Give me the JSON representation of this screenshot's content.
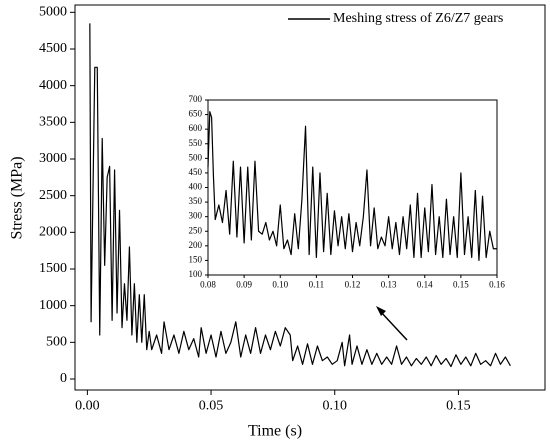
{
  "chart_data": [
    {
      "type": "line",
      "xlabel": "Time (s)",
      "ylabel": "Stress (MPa)",
      "x": [
        0.001,
        0.0015,
        0.003,
        0.004,
        0.005,
        0.006,
        0.007,
        0.008,
        0.009,
        0.01,
        0.011,
        0.012,
        0.013,
        0.014,
        0.015,
        0.016,
        0.017,
        0.018,
        0.019,
        0.02,
        0.021,
        0.022,
        0.023,
        0.024,
        0.025,
        0.026,
        0.028,
        0.03,
        0.031,
        0.033,
        0.035,
        0.037,
        0.039,
        0.041,
        0.043,
        0.045,
        0.046,
        0.048,
        0.05,
        0.052,
        0.054,
        0.056,
        0.058,
        0.06,
        0.062,
        0.064,
        0.066,
        0.068,
        0.07,
        0.072,
        0.074,
        0.076,
        0.078,
        0.08,
        0.082,
        0.083,
        0.085,
        0.087,
        0.089,
        0.091,
        0.093,
        0.095,
        0.097,
        0.099,
        0.101,
        0.103,
        0.104,
        0.106,
        0.107,
        0.109,
        0.111,
        0.113,
        0.115,
        0.117,
        0.119,
        0.121,
        0.123,
        0.125,
        0.127,
        0.129,
        0.131,
        0.133,
        0.135,
        0.137,
        0.139,
        0.141,
        0.143,
        0.145,
        0.147,
        0.149,
        0.151,
        0.153,
        0.155,
        0.157,
        0.159,
        0.161,
        0.163,
        0.165,
        0.167,
        0.169,
        0.171
      ],
      "series": [
        {
          "name": "Meshing stress of Z6/Z7 gears",
          "color": "#000000",
          "values": [
            4850,
            780,
            4250,
            4250,
            600,
            3280,
            1550,
            2750,
            2900,
            800,
            2850,
            900,
            2300,
            700,
            1300,
            800,
            1800,
            600,
            1300,
            500,
            1150,
            500,
            1150,
            400,
            650,
            400,
            600,
            350,
            780,
            400,
            600,
            350,
            650,
            400,
            550,
            300,
            700,
            350,
            600,
            300,
            650,
            350,
            500,
            780,
            300,
            600,
            350,
            700,
            350,
            600,
            400,
            650,
            450,
            700,
            600,
            250,
            450,
            200,
            480,
            200,
            450,
            250,
            300,
            200,
            250,
            500,
            180,
            600,
            200,
            450,
            200,
            400,
            200,
            350,
            200,
            300,
            200,
            450,
            200,
            300,
            180,
            280,
            200,
            300,
            180,
            320,
            200,
            280,
            170,
            330,
            200,
            300,
            180,
            350,
            200,
            250,
            180,
            350,
            200,
            300,
            180
          ]
        }
      ],
      "xlim": [
        -0.005,
        0.185
      ],
      "xticks": [
        {
          "value": 0,
          "label": "0.00"
        },
        0.05,
        {
          "value": 0.1,
          "label": "0.10"
        },
        0.15
      ],
      "ylim": [
        -150,
        5100
      ],
      "yticks": [
        0,
        500,
        1000,
        1500,
        2000,
        2500,
        3000,
        3500,
        4000,
        4500,
        5000
      ]
    },
    {
      "type": "line",
      "x": [
        0.08,
        0.0805,
        0.081,
        0.0815,
        0.082,
        0.083,
        0.084,
        0.085,
        0.086,
        0.087,
        0.088,
        0.089,
        0.09,
        0.091,
        0.092,
        0.093,
        0.094,
        0.095,
        0.096,
        0.097,
        0.098,
        0.099,
        0.1,
        0.101,
        0.102,
        0.103,
        0.104,
        0.105,
        0.106,
        0.107,
        0.108,
        0.109,
        0.11,
        0.111,
        0.112,
        0.113,
        0.114,
        0.115,
        0.116,
        0.117,
        0.118,
        0.119,
        0.12,
        0.121,
        0.122,
        0.123,
        0.124,
        0.125,
        0.126,
        0.127,
        0.128,
        0.129,
        0.13,
        0.131,
        0.132,
        0.133,
        0.134,
        0.135,
        0.136,
        0.137,
        0.138,
        0.139,
        0.14,
        0.141,
        0.142,
        0.143,
        0.144,
        0.145,
        0.146,
        0.147,
        0.148,
        0.149,
        0.15,
        0.151,
        0.152,
        0.153,
        0.154,
        0.155,
        0.156,
        0.157,
        0.158,
        0.159,
        0.16
      ],
      "values": [
        470,
        660,
        640,
        440,
        290,
        340,
        280,
        390,
        240,
        490,
        230,
        470,
        210,
        470,
        220,
        490,
        250,
        240,
        280,
        220,
        250,
        200,
        340,
        190,
        220,
        170,
        310,
        190,
        360,
        610,
        170,
        470,
        160,
        450,
        180,
        380,
        170,
        320,
        200,
        300,
        190,
        310,
        180,
        280,
        200,
        300,
        460,
        200,
        330,
        190,
        230,
        200,
        300,
        190,
        280,
        170,
        300,
        190,
        340,
        160,
        380,
        160,
        330,
        180,
        410,
        170,
        300,
        160,
        360,
        170,
        300,
        160,
        450,
        170,
        300,
        160,
        390,
        150,
        370,
        160,
        250,
        190,
        190
      ],
      "color": "#000000",
      "xlim": [
        0.08,
        0.16
      ],
      "xticks": [
        0.08,
        0.09,
        {
          "value": 0.1,
          "label": "0.10"
        },
        0.11,
        0.12,
        0.13,
        0.14,
        0.15,
        0.16
      ],
      "ylim": [
        100,
        700
      ],
      "yticks": [
        100,
        150,
        200,
        250,
        300,
        350,
        400,
        450,
        500,
        550,
        600,
        650,
        700
      ]
    }
  ]
}
